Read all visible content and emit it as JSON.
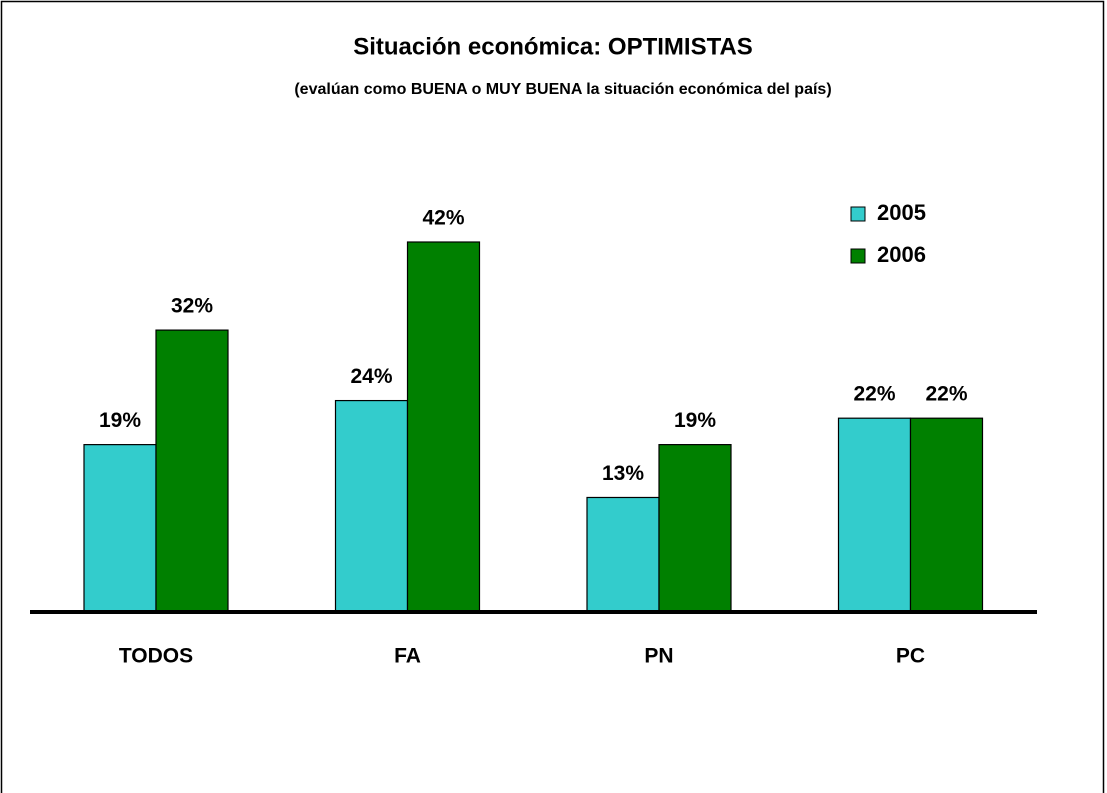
{
  "chart_data": {
    "type": "bar",
    "title": "Situación económica: OPTIMISTAS",
    "subtitle": "(evalúan como BUENA o MUY BUENA la situación económica del país)",
    "categories": [
      "TODOS",
      "FA",
      "PN",
      "PC"
    ],
    "series": [
      {
        "name": "2005",
        "color": "#33cccc",
        "values": [
          19,
          24,
          13,
          22
        ],
        "value_labels": [
          "19%",
          "24%",
          "13%",
          "22%"
        ]
      },
      {
        "name": "2006",
        "color": "#008000",
        "values": [
          32,
          42,
          19,
          22
        ],
        "value_labels": [
          "32%",
          "42%",
          "19%",
          "22%"
        ]
      }
    ],
    "legend": "top-right"
  }
}
